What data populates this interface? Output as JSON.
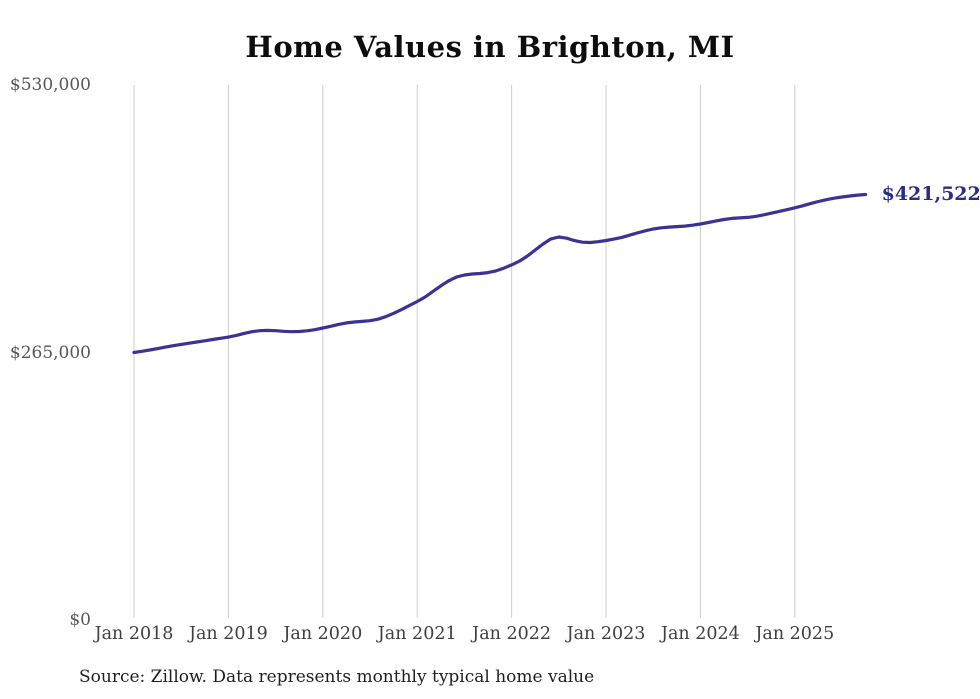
{
  "title": "Home Values in Brighton, MI",
  "source_note": "Source: Zillow. Data represents monthly typical home value",
  "colors": {
    "line": "#3b3295",
    "end_label": "#2b2b88",
    "gridline": "#cdcdcd",
    "title": "#0d0d0d",
    "x_label": "#3f3f3f",
    "y_label": "#575757",
    "background": "#ffffff"
  },
  "chart_data": {
    "type": "line",
    "title": "Home Values in Brighton, MI",
    "xlabel": "",
    "ylabel": "",
    "grid": "vertical-only",
    "legend": "none",
    "ylim": [
      0,
      530000
    ],
    "y_ticks": [
      {
        "value": 530000,
        "label": "$530,000"
      },
      {
        "value": 265000,
        "label": "$265,000"
      },
      {
        "value": 0,
        "label": "$0"
      }
    ],
    "x_ticks": [
      "Jan 2018",
      "Jan 2019",
      "Jan 2020",
      "Jan 2021",
      "Jan 2022",
      "Jan 2023",
      "Jan 2024",
      "Jan 2025"
    ],
    "series_name": "Typical home value (monthly)",
    "start_month": "Jan 2018",
    "end_month": "Oct 2025",
    "end_value": 421522,
    "end_label": "$421,522",
    "values": [
      265000,
      266200,
      267500,
      268900,
      270300,
      271700,
      273000,
      274200,
      275400,
      276600,
      277900,
      279100,
      280300,
      281900,
      283900,
      285600,
      286600,
      286900,
      286600,
      286000,
      285600,
      285800,
      286500,
      287600,
      289300,
      291000,
      292800,
      294300,
      295200,
      295800,
      296500,
      298000,
      300500,
      303800,
      307500,
      311500,
      315500,
      320000,
      325500,
      331000,
      336000,
      339800,
      341800,
      342800,
      343300,
      344200,
      345800,
      348500,
      351800,
      355500,
      360500,
      366500,
      372500,
      377500,
      379400,
      378200,
      375900,
      374300,
      374000,
      374800,
      376000,
      377300,
      379000,
      381200,
      383500,
      385600,
      387300,
      388500,
      389200,
      389700,
      390200,
      391100,
      392300,
      393800,
      395400,
      396800,
      397800,
      398300,
      398800,
      399800,
      401300,
      403000,
      404800,
      406500,
      408300,
      410300,
      412500,
      414600,
      416400,
      417900,
      419000,
      420000,
      420900,
      421522
    ]
  }
}
